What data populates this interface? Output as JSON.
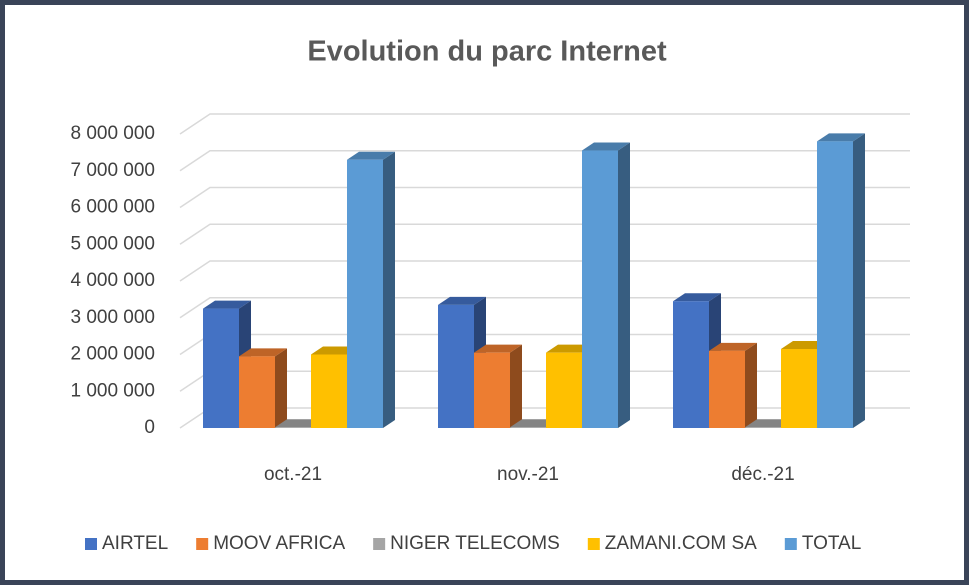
{
  "chart_data": {
    "type": "bar3d",
    "title": "Evolution du parc Internet",
    "categories": [
      "oct.-21",
      "nov.-21",
      "déc.-21"
    ],
    "series": [
      {
        "name": "AIRTEL",
        "color": "#4472c4",
        "values": [
          3250000,
          3350000,
          3450000
        ]
      },
      {
        "name": "MOOV AFRICA",
        "color": "#ed7d31",
        "values": [
          1950000,
          2050000,
          2100000
        ]
      },
      {
        "name": "NIGER TELECOMS",
        "color": "#a5a5a5",
        "values": [
          20000,
          20000,
          20000
        ]
      },
      {
        "name": "ZAMANI.COM SA",
        "color": "#ffc000",
        "values": [
          2000000,
          2050000,
          2150000
        ]
      },
      {
        "name": "TOTAL",
        "color": "#5b9bd5",
        "values": [
          7300000,
          7550000,
          7800000
        ]
      }
    ],
    "ylim": [
      0,
      8000000
    ],
    "yticks": [
      {
        "value": 0,
        "label": "0"
      },
      {
        "value": 1000000,
        "label": "1 000 000"
      },
      {
        "value": 2000000,
        "label": "2 000 000"
      },
      {
        "value": 3000000,
        "label": "3 000 000"
      },
      {
        "value": 4000000,
        "label": "4 000 000"
      },
      {
        "value": 5000000,
        "label": "5 000 000"
      },
      {
        "value": 6000000,
        "label": "6 000 000"
      },
      {
        "value": 7000000,
        "label": "7 000 000"
      },
      {
        "value": 8000000,
        "label": "8 000 000"
      }
    ],
    "grid": true,
    "legend": "bottom"
  }
}
